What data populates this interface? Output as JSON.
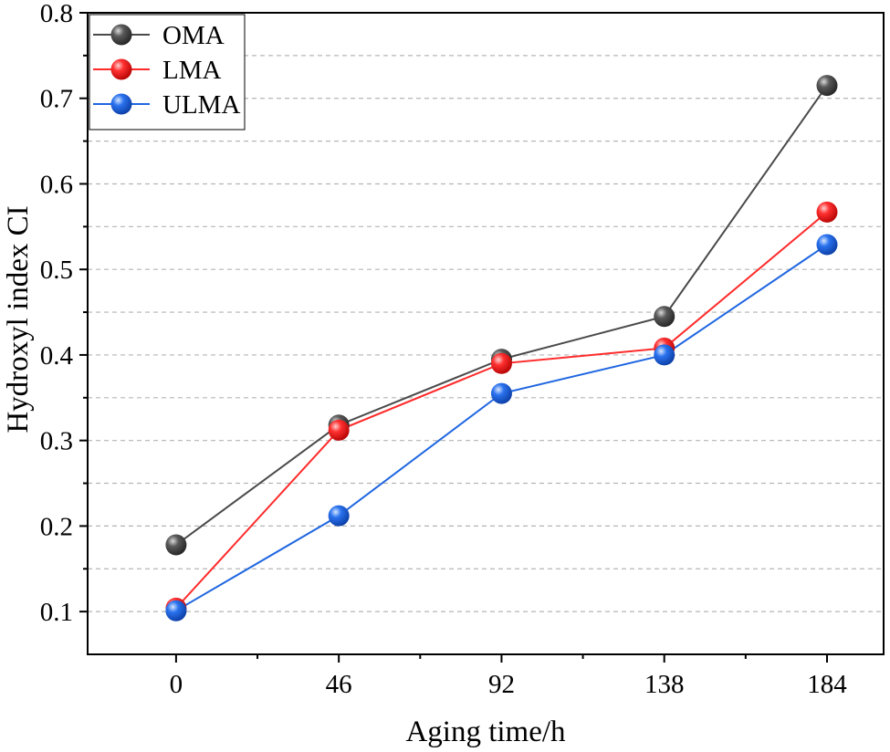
{
  "chart_data": {
    "type": "line",
    "title": "",
    "xlabel": "Aging time/h",
    "ylabel": "Hydroxyl index CI",
    "x": [
      0,
      46,
      92,
      138,
      184
    ],
    "xticks": [
      "0",
      "46",
      "92",
      "138",
      "184"
    ],
    "xlim": [
      -25,
      200
    ],
    "ylim": [
      0.05,
      0.8
    ],
    "yticks": [
      0.1,
      0.2,
      0.3,
      0.4,
      0.5,
      0.6,
      0.7,
      0.8
    ],
    "ytick_labels": [
      "0.1",
      "0.2",
      "0.3",
      "0.4",
      "0.5",
      "0.6",
      "0.7",
      "0.8"
    ],
    "grid": "horizontal dashed",
    "legend_position": "top-left",
    "series": [
      {
        "name": "OMA",
        "color": "#4a4a4a",
        "values": [
          0.178,
          0.318,
          0.395,
          0.445,
          0.715
        ]
      },
      {
        "name": "LMA",
        "color": "#ff2a2a",
        "values": [
          0.104,
          0.312,
          0.39,
          0.408,
          0.567
        ]
      },
      {
        "name": "ULMA",
        "color": "#1f66e0",
        "values": [
          0.101,
          0.212,
          0.355,
          0.4,
          0.529
        ]
      }
    ]
  }
}
